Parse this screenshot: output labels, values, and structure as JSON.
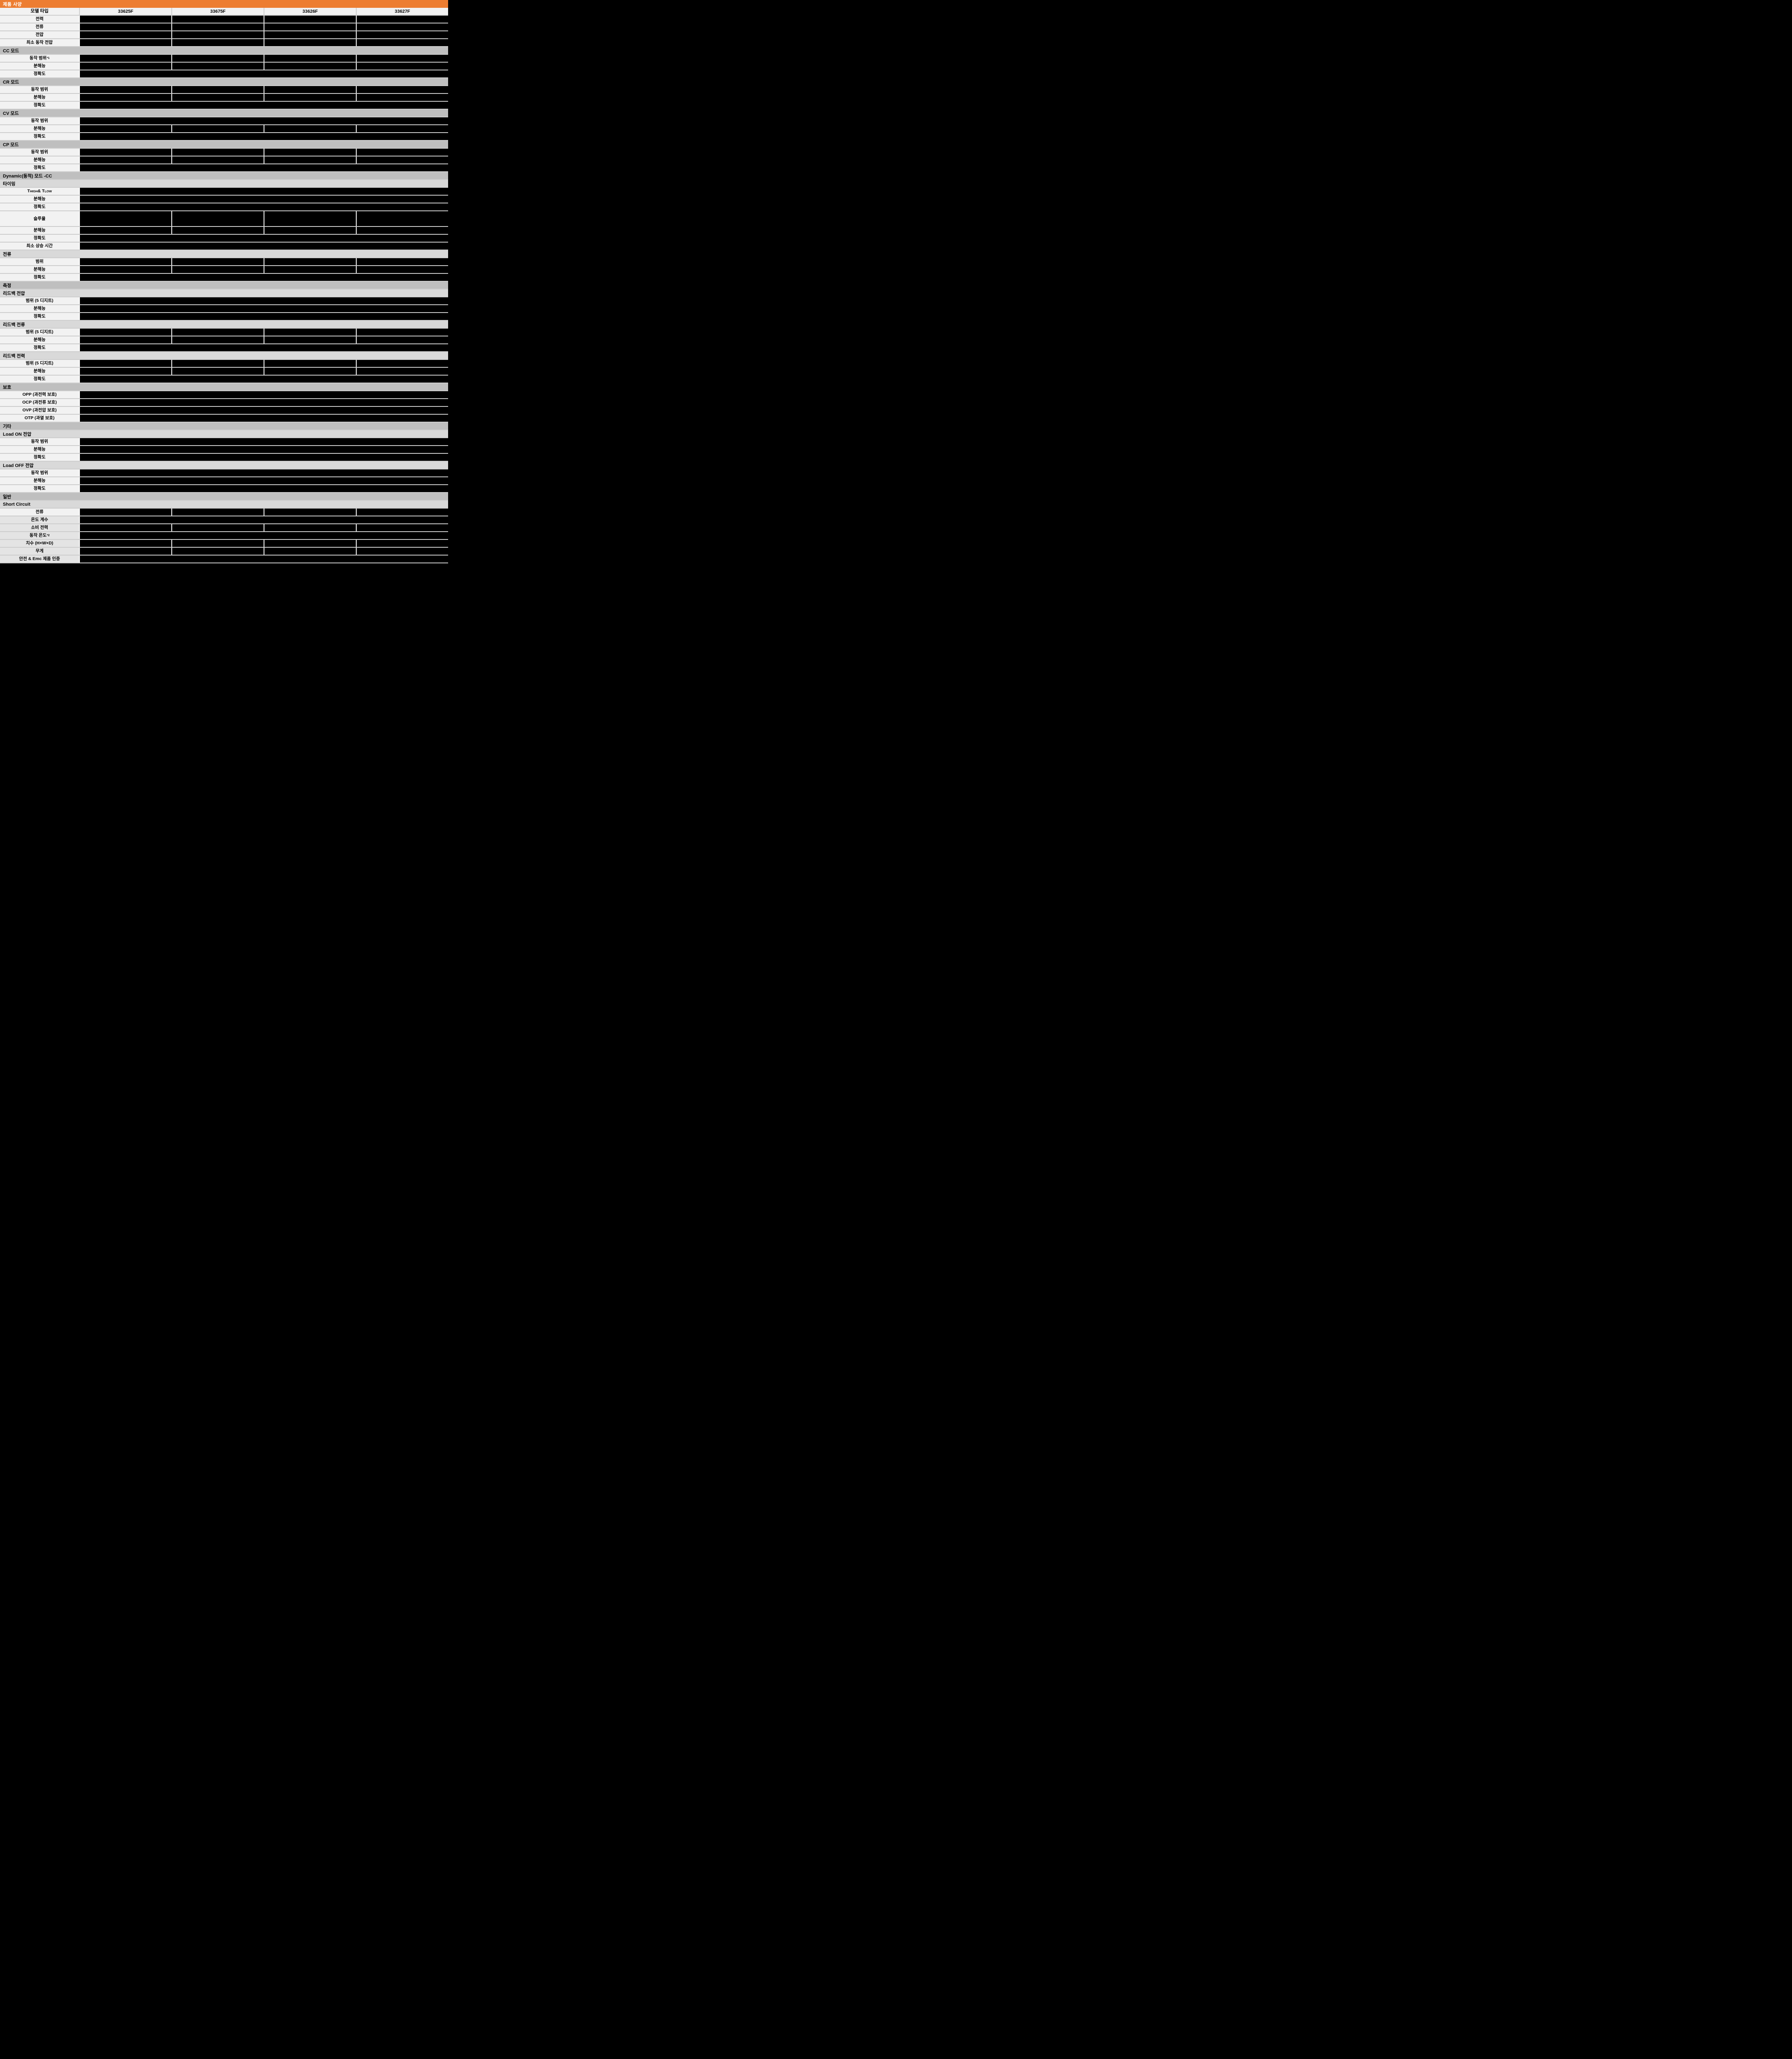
{
  "title": "제품 사양",
  "colors": {
    "accent_orange": "#ED7D31",
    "section_gray": "#BFBFBF",
    "subsection_gray": "#D9D9D9",
    "label_bg": "#F2F2F2",
    "label_bg_dim": "#E4E4E4",
    "blackout": "#000000",
    "grid_line": "#CDCDCD"
  },
  "table": {
    "header": {
      "label": "모델 타입",
      "models": [
        "33625F",
        "33675F",
        "33626F",
        "33627F"
      ]
    },
    "rows": [
      {
        "type": "spec4",
        "label": "전력"
      },
      {
        "type": "spec4",
        "label": "전류"
      },
      {
        "type": "spec4",
        "label": "전압"
      },
      {
        "type": "spec4",
        "label": "최소 동작 전압"
      },
      {
        "type": "section",
        "label": "CC 모드"
      },
      {
        "type": "spec4",
        "label": "동작 범위",
        "sup": "*1"
      },
      {
        "type": "spec4",
        "label": "분해능"
      },
      {
        "type": "spec1",
        "label": "정확도"
      },
      {
        "type": "section",
        "label": "CR 모드"
      },
      {
        "type": "spec4",
        "label": "동작 범위"
      },
      {
        "type": "spec4",
        "label": "분해능"
      },
      {
        "type": "spec1",
        "label": "정확도"
      },
      {
        "type": "section",
        "label": "CV 모드"
      },
      {
        "type": "spec1",
        "label": "동작 범위"
      },
      {
        "type": "spec4",
        "label": "분해능"
      },
      {
        "type": "spec1",
        "label": "정확도"
      },
      {
        "type": "section",
        "label": "CP 모드"
      },
      {
        "type": "spec4",
        "label": "동작 범위"
      },
      {
        "type": "spec4",
        "label": "분해능"
      },
      {
        "type": "spec1",
        "label": "정확도"
      },
      {
        "type": "section",
        "label": "Dynamic(동적) 모드 -CC"
      },
      {
        "type": "subsection",
        "label": "타이밍"
      },
      {
        "type": "spec1",
        "label": "THIGH & TLOW",
        "parts": [
          {
            "text": "T"
          },
          {
            "text": "HIGH",
            "small": true
          },
          {
            "text": " & T"
          },
          {
            "text": "LOW",
            "small": true
          }
        ]
      },
      {
        "type": "spec1",
        "label": "분해능"
      },
      {
        "type": "spec1",
        "label": "정확도"
      },
      {
        "type": "spec4",
        "label": "슬루율",
        "tall": true
      },
      {
        "type": "spec4",
        "label": "분해능"
      },
      {
        "type": "spec1",
        "label": "정확도"
      },
      {
        "type": "spec1",
        "label": "최소 상승 시간"
      },
      {
        "type": "subsection",
        "label": "전류"
      },
      {
        "type": "spec4",
        "label": "범위"
      },
      {
        "type": "spec4",
        "label": "분해능"
      },
      {
        "type": "spec1",
        "label": "정확도"
      },
      {
        "type": "section",
        "label": "측정"
      },
      {
        "type": "subsection",
        "label": "리드백 전압"
      },
      {
        "type": "spec1",
        "label": "범위 (5 디지트)"
      },
      {
        "type": "spec1",
        "label": "분해능"
      },
      {
        "type": "spec1",
        "label": "정확도"
      },
      {
        "type": "subsection",
        "label": "리드백 전류"
      },
      {
        "type": "spec4",
        "label": "범위 (5 디지트)"
      },
      {
        "type": "spec4",
        "label": "분해능"
      },
      {
        "type": "spec1",
        "label": "정확도"
      },
      {
        "type": "subsection",
        "label": "리드백 전력"
      },
      {
        "type": "spec4",
        "label": "범위 (5 디지트)"
      },
      {
        "type": "spec4",
        "label": "분해능"
      },
      {
        "type": "spec1",
        "label": "정확도"
      },
      {
        "type": "section",
        "label": "보호"
      },
      {
        "type": "spec1",
        "label": "OPP (과전력 보호)"
      },
      {
        "type": "spec1",
        "label": "OCP (과전류 보호)"
      },
      {
        "type": "spec1",
        "label": "OVP (과전압 보호)"
      },
      {
        "type": "spec1",
        "label": "OTP (과열 보호)"
      },
      {
        "type": "section",
        "label": "기타"
      },
      {
        "type": "subsection",
        "label": "Load ON 전압"
      },
      {
        "type": "spec1",
        "label": "동작 범위"
      },
      {
        "type": "spec1",
        "label": "분해능"
      },
      {
        "type": "spec1",
        "label": "정확도"
      },
      {
        "type": "subsection",
        "label": "Load OFF 전압"
      },
      {
        "type": "spec1",
        "label": "동작 범위"
      },
      {
        "type": "spec1",
        "label": "분해능"
      },
      {
        "type": "spec1",
        "label": "정확도"
      },
      {
        "type": "section",
        "label": "일반"
      },
      {
        "type": "subsection",
        "label": "Short Circuit"
      },
      {
        "type": "spec4",
        "label": "전류"
      },
      {
        "type": "spec1",
        "label": "온도 계수",
        "dim": true
      },
      {
        "type": "spec4",
        "label": "소비 전력",
        "dim": true
      },
      {
        "type": "spec1",
        "label": "동작 온도",
        "sup": "*2",
        "dim": true
      },
      {
        "type": "spec4",
        "label": "치수 (H×W×D)",
        "dim": true
      },
      {
        "type": "spec4",
        "label": "무게",
        "dim": true
      },
      {
        "type": "spec1",
        "label": "안전 & Emc 제품 인증",
        "dim": true
      }
    ]
  }
}
